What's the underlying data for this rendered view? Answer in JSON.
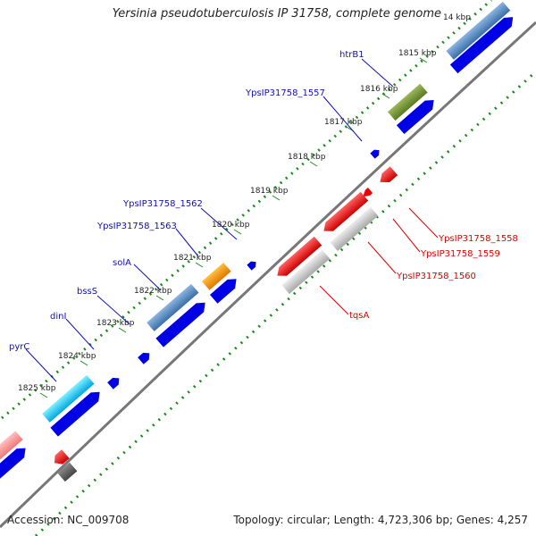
{
  "title": "Yersinia pseudotuberculosis IP 31758, complete genome",
  "footer": {
    "accession": "Accession: NC_009708",
    "summary": "Topology: circular; Length: 4,723,306 bp; Genes: 4,257"
  },
  "colors": {
    "backbone": "#777777",
    "tick": "#1a8a1a",
    "forward_label": "#1010b0",
    "reverse_label": "#e00000",
    "cds": "#0000e6",
    "cds_light": "#4080ff",
    "rrna_red": "#ee0000",
    "gray": "#bbbbbb"
  },
  "kbp_ticks": [
    "1815 kbp",
    "1816 kbp",
    "1817 kbp",
    "1818 kbp",
    "1819 kbp",
    "1820 kbp",
    "1821 kbp",
    "1822 kbp",
    "1823 kbp",
    "1824 kbp",
    "1825 kbp",
    "14 kbp"
  ],
  "forward_labels": [
    "htrB1",
    "YpsIP31758_1557",
    "YpsIP31758_1562",
    "YpsIP31758_1563",
    "solA",
    "bssS",
    "dinI",
    "pyrC"
  ],
  "reverse_labels": [
    "YpsIP31758_1558",
    "YpsIP31758_1559",
    "YpsIP31758_1560",
    "tqsA"
  ]
}
